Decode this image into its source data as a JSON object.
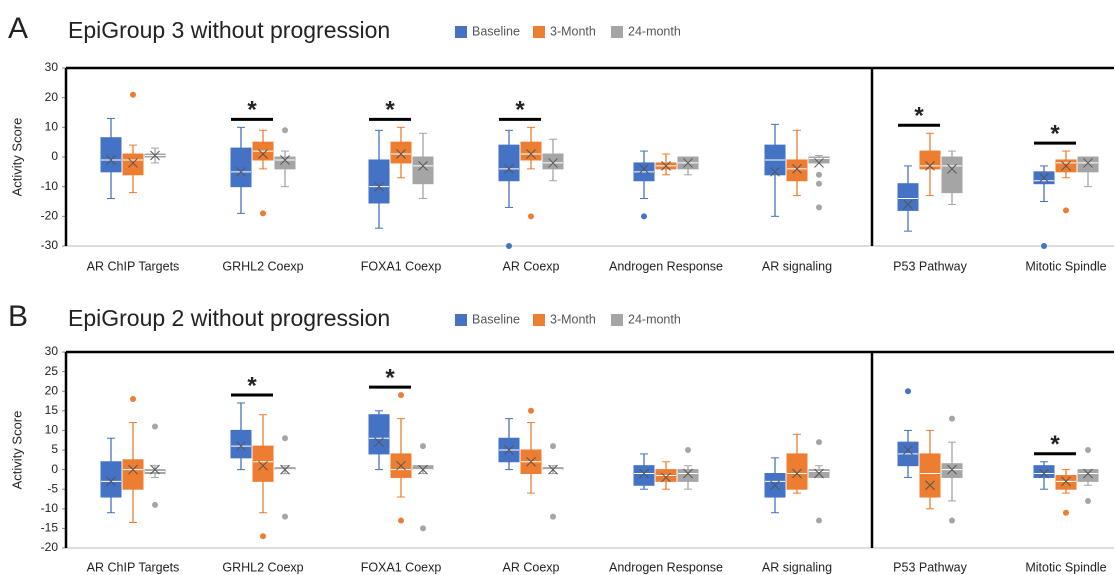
{
  "chart_data": [
    {
      "type": "box",
      "label": "A",
      "title": "EpiGroup 3 without progression",
      "ylabel": "Activity Score",
      "categories": [
        "AR ChIP Targets",
        "GRHL2 Coexp",
        "FOXA1 Coexp",
        "AR Coexp",
        "Androgen Response",
        "AR signaling",
        "P53 Pathway",
        "Mitotic Spindle"
      ],
      "ylim": [
        -30,
        30
      ],
      "yticks": [
        -30,
        -20,
        -10,
        0,
        10,
        20,
        30
      ],
      "annotations": [
        {
          "text": "*",
          "category": 1
        },
        {
          "text": "*",
          "category": 2
        },
        {
          "text": "*",
          "category": 3
        },
        {
          "text": "*",
          "category": 6
        },
        {
          "text": "*",
          "category": 7
        }
      ],
      "series": [
        {
          "name": "Baseline",
          "color": "#4472c4",
          "boxes": [
            {
              "min": -14,
              "q1": -5,
              "median": -1,
              "q3": 6.5,
              "max": 13,
              "mean": -1,
              "outliers": []
            },
            {
              "min": -19,
              "q1": -10,
              "median": -5,
              "q3": 3,
              "max": 10,
              "mean": -5,
              "outliers": []
            },
            {
              "min": -24,
              "q1": -15.5,
              "median": -10,
              "q3": -1,
              "max": 9,
              "mean": -10,
              "outliers": []
            },
            {
              "min": -17,
              "q1": -8,
              "median": -4,
              "q3": 4,
              "max": 9,
              "mean": -4,
              "outliers": [
                -30
              ]
            },
            {
              "min": -14,
              "q1": -8,
              "median": -5,
              "q3": -2,
              "max": 2,
              "mean": -4,
              "outliers": [
                -20
              ]
            },
            {
              "min": -20,
              "q1": -6,
              "median": -1,
              "q3": 4,
              "max": 11,
              "mean": -5,
              "outliers": []
            },
            {
              "min": -25,
              "q1": -18,
              "median": -14,
              "q3": -9,
              "max": -3,
              "mean": -16,
              "outliers": []
            },
            {
              "min": -15,
              "q1": -9,
              "median": -8,
              "q3": -5,
              "max": -3,
              "mean": -7,
              "outliers": [
                -30
              ]
            }
          ]
        },
        {
          "name": "3-Month",
          "color": "#ed7d31",
          "boxes": [
            {
              "min": -12,
              "q1": -6,
              "median": -1,
              "q3": 1,
              "max": 4,
              "mean": -2,
              "outliers": [
                21
              ]
            },
            {
              "min": -4,
              "q1": -1,
              "median": 2,
              "q3": 5,
              "max": 9,
              "mean": 1,
              "outliers": [
                -19
              ]
            },
            {
              "min": -7,
              "q1": -2,
              "median": 1,
              "q3": 5,
              "max": 10,
              "mean": 1,
              "outliers": []
            },
            {
              "min": -4,
              "q1": -1,
              "median": 1,
              "q3": 5,
              "max": 10,
              "mean": 1,
              "outliers": [
                -20
              ]
            },
            {
              "min": -6,
              "q1": -4,
              "median": -3,
              "q3": -2,
              "max": 1,
              "mean": -3,
              "outliers": []
            },
            {
              "min": -13,
              "q1": -8,
              "median": -4,
              "q3": -1,
              "max": 9,
              "mean": -4,
              "outliers": []
            },
            {
              "min": -13,
              "q1": -4,
              "median": -3,
              "q3": 2,
              "max": 8,
              "mean": -3,
              "outliers": []
            },
            {
              "min": -7,
              "q1": -5,
              "median": -2,
              "q3": -1,
              "max": 2,
              "mean": -3,
              "outliers": [
                -18
              ]
            }
          ]
        },
        {
          "name": "24-month",
          "color": "#a5a5a5",
          "boxes": [
            {
              "min": -2,
              "q1": 0,
              "median": 0.5,
              "q3": 1,
              "max": 3,
              "mean": 0.5,
              "outliers": []
            },
            {
              "min": -10,
              "q1": -4,
              "median": -1,
              "q3": 0,
              "max": 2,
              "mean": -1,
              "outliers": [
                9
              ]
            },
            {
              "min": -14,
              "q1": -9,
              "median": -3,
              "q3": 0,
              "max": 8,
              "mean": -3,
              "outliers": []
            },
            {
              "min": -8,
              "q1": -4,
              "median": -2,
              "q3": 1,
              "max": 6,
              "mean": -2,
              "outliers": []
            },
            {
              "min": -6,
              "q1": -4,
              "median": -2,
              "q3": 0,
              "max": 0,
              "mean": -2,
              "outliers": []
            },
            {
              "min": -2,
              "q1": -2,
              "median": -0.5,
              "q3": 0,
              "max": 0.5,
              "mean": -2,
              "outliers": [
                -6,
                -9,
                -17
              ]
            },
            {
              "min": -16,
              "q1": -12,
              "median": -3,
              "q3": 0,
              "max": 2,
              "mean": -4,
              "outliers": []
            },
            {
              "min": -10,
              "q1": -5,
              "median": -2,
              "q3": 0,
              "max": 0,
              "mean": -2,
              "outliers": []
            }
          ]
        }
      ]
    },
    {
      "type": "box",
      "label": "B",
      "title": "EpiGroup 2 without progression",
      "ylabel": "Activity Score",
      "categories": [
        "AR ChIP Targets",
        "GRHL2 Coexp",
        "FOXA1 Coexp",
        "AR Coexp",
        "Androgen Response",
        "AR signaling",
        "P53 Pathway",
        "Mitotic Spindle"
      ],
      "ylim": [
        -20,
        30
      ],
      "yticks": [
        -20,
        -15,
        -10,
        -5,
        0,
        5,
        10,
        15,
        20,
        25,
        30
      ],
      "annotations": [
        {
          "text": "*",
          "category": 1
        },
        {
          "text": "*",
          "category": 2
        },
        {
          "text": "*",
          "category": 7
        }
      ],
      "series": [
        {
          "name": "Baseline",
          "color": "#4472c4",
          "boxes": [
            {
              "min": -11,
              "q1": -7,
              "median": -3,
              "q3": 2,
              "max": 8,
              "mean": -3,
              "outliers": []
            },
            {
              "min": 0,
              "q1": 3,
              "median": 6,
              "q3": 10,
              "max": 17,
              "mean": 6,
              "outliers": []
            },
            {
              "min": 0,
              "q1": 4,
              "median": 8,
              "q3": 14,
              "max": 15,
              "mean": 7,
              "outliers": []
            },
            {
              "min": 0,
              "q1": 2,
              "median": 5,
              "q3": 8,
              "max": 13,
              "mean": 5,
              "outliers": []
            },
            {
              "min": -5,
              "q1": -4,
              "median": -1,
              "q3": 1,
              "max": 4,
              "mean": -1,
              "outliers": []
            },
            {
              "min": -11,
              "q1": -7,
              "median": -3,
              "q3": -1,
              "max": 3,
              "mean": -4,
              "outliers": []
            },
            {
              "min": -2,
              "q1": 1,
              "median": 4,
              "q3": 7,
              "max": 10,
              "mean": 5,
              "outliers": [
                20
              ]
            },
            {
              "min": -5,
              "q1": -2,
              "median": -1,
              "q3": 1,
              "max": 2,
              "mean": -1,
              "outliers": []
            }
          ]
        },
        {
          "name": "3-Month",
          "color": "#ed7d31",
          "boxes": [
            {
              "min": -13.5,
              "q1": -5,
              "median": 0,
              "q3": 2.5,
              "max": 12,
              "mean": 0,
              "outliers": [
                18
              ]
            },
            {
              "min": -11,
              "q1": -3,
              "median": 2,
              "q3": 6,
              "max": 14,
              "mean": 1,
              "outliers": [
                -17
              ]
            },
            {
              "min": -7,
              "q1": -2,
              "median": 0,
              "q3": 4,
              "max": 13,
              "mean": 1,
              "outliers": [
                19,
                -13
              ]
            },
            {
              "min": -6,
              "q1": -1,
              "median": 2,
              "q3": 5,
              "max": 12,
              "mean": 2,
              "outliers": [
                15
              ]
            },
            {
              "min": -5,
              "q1": -3,
              "median": -1.5,
              "q3": 0,
              "max": 2,
              "mean": -2,
              "outliers": []
            },
            {
              "min": -6,
              "q1": -5,
              "median": -1,
              "q3": 4,
              "max": 9,
              "mean": -1,
              "outliers": []
            },
            {
              "min": -10,
              "q1": -7,
              "median": -1,
              "q3": 4,
              "max": 10,
              "mean": -4,
              "outliers": []
            },
            {
              "min": -6,
              "q1": -5,
              "median": -3,
              "q3": -1.5,
              "max": 0,
              "mean": -3,
              "outliers": [
                -11
              ]
            }
          ]
        },
        {
          "name": "24-month",
          "color": "#a5a5a5",
          "boxes": [
            {
              "min": -2,
              "q1": -1,
              "median": -0.5,
              "q3": 0,
              "max": 1,
              "mean": 0,
              "outliers": [
                11,
                -9
              ]
            },
            {
              "min": -1,
              "q1": 0,
              "median": 0,
              "q3": 0.5,
              "max": 1,
              "mean": 0,
              "outliers": [
                8,
                -12
              ]
            },
            {
              "min": -1,
              "q1": 0,
              "median": 0,
              "q3": 1,
              "max": 1,
              "mean": 0,
              "outliers": [
                6,
                -15
              ]
            },
            {
              "min": -1,
              "q1": 0,
              "median": 0,
              "q3": 0.5,
              "max": 1,
              "mean": 0,
              "outliers": [
                6,
                -12
              ]
            },
            {
              "min": -5,
              "q1": -3,
              "median": -1,
              "q3": 0,
              "max": 1,
              "mean": -1,
              "outliers": [
                5
              ]
            },
            {
              "min": -2,
              "q1": -2,
              "median": -0.5,
              "q3": 0,
              "max": 1,
              "mean": -1,
              "outliers": [
                7,
                -13
              ]
            },
            {
              "min": -8,
              "q1": -2,
              "median": 0,
              "q3": 1.5,
              "max": 7,
              "mean": 0,
              "outliers": [
                13,
                -13
              ]
            },
            {
              "min": -4,
              "q1": -3,
              "median": -1,
              "q3": 0,
              "max": 0,
              "mean": -1,
              "outliers": [
                5,
                -8
              ]
            }
          ]
        }
      ]
    }
  ]
}
